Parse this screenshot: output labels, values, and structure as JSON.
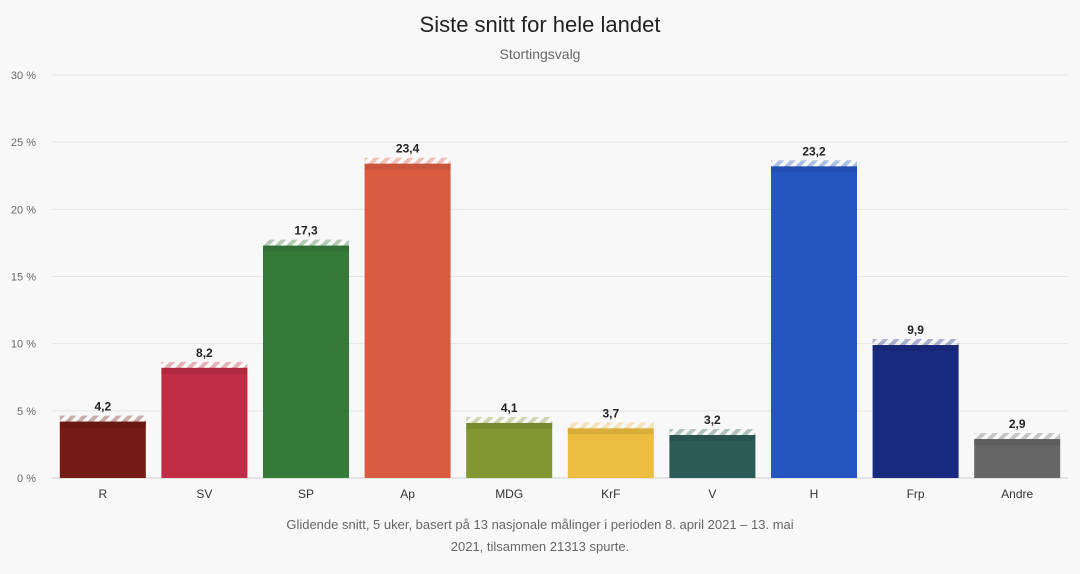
{
  "header": {
    "title": "Siste snitt for hele landet",
    "subtitle": "Stortingsvalg"
  },
  "footnote": "Glidende snitt, 5 uker, basert på 13 nasjonale målinger i perioden 8. april 2021 – 13. mai 2021, tilsammen 21313 spurte.",
  "chart_data": {
    "type": "bar",
    "title": "Siste snitt for hele landet",
    "subtitle": "Stortingsvalg",
    "categories": [
      "R",
      "SV",
      "SP",
      "Ap",
      "MDG",
      "KrF",
      "V",
      "H",
      "Frp",
      "Andre"
    ],
    "values": [
      4.2,
      8.2,
      17.3,
      23.4,
      4.1,
      3.7,
      3.2,
      23.2,
      9.9,
      2.9
    ],
    "value_labels": [
      "4,2",
      "8,2",
      "17,3",
      "23,4",
      "4,1",
      "3,7",
      "3,2",
      "23,2",
      "9,9",
      "2,9"
    ],
    "colors": [
      "#731b14",
      "#c12c47",
      "#367a3a",
      "#d95c40",
      "#829631",
      "#edbd41",
      "#2c5b57",
      "#2555c1",
      "#192b80",
      "#666666"
    ],
    "ylim": [
      0,
      30
    ],
    "yticks": [
      0,
      5,
      10,
      15,
      20,
      25,
      30
    ],
    "ytick_labels": [
      "0 %",
      "5 %",
      "10 %",
      "15 %",
      "20 %",
      "25 %",
      "30 %"
    ],
    "xlabel": "",
    "ylabel": "",
    "grid": true
  }
}
